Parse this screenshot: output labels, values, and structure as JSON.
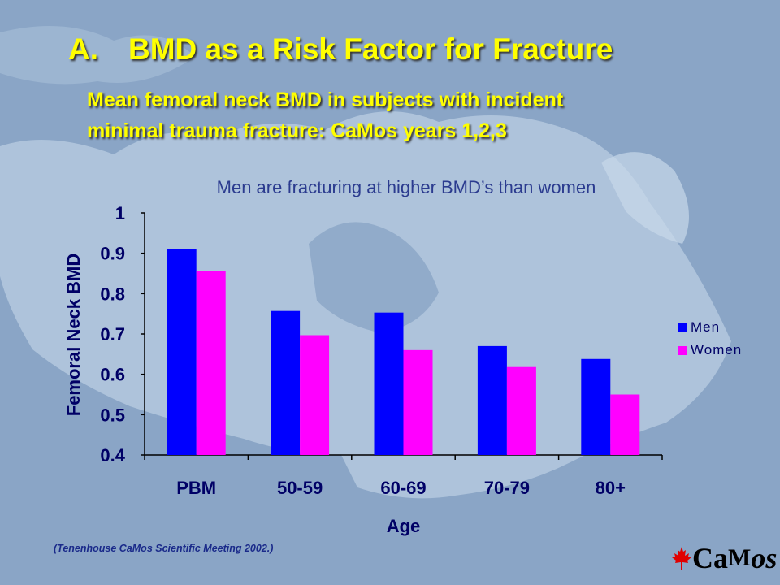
{
  "slide": {
    "title_number": "A.",
    "title_text": "BMD as a Risk Factor for Fracture",
    "subtitle_line1": "Mean femoral neck BMD in subjects with incident",
    "subtitle_line2": "minimal trauma fracture: CaMos years 1,2,3",
    "caption": "Men are fracturing at higher BMD’s than women",
    "reference": "(Tenenhouse CaMos Scientific Meeting 2002.)",
    "logo_ca": "Ca",
    "logo_m": "M",
    "logo_os": "os"
  },
  "chart_data": {
    "type": "bar",
    "categories": [
      "PBM",
      "50-59",
      "60-69",
      "70-79",
      "80+"
    ],
    "series": [
      {
        "name": "Men",
        "values": [
          0.91,
          0.757,
          0.753,
          0.67,
          0.638
        ],
        "color": "#0000ff"
      },
      {
        "name": "Women",
        "values": [
          0.857,
          0.697,
          0.66,
          0.618,
          0.55
        ],
        "color": "#ff00ff"
      }
    ],
    "xlabel": "Age",
    "ylabel": "Femoral Neck BMD",
    "ylim": [
      0.4,
      1
    ],
    "yticks": [
      "0.4",
      "0.5",
      "0.6",
      "0.7",
      "0.8",
      "0.9",
      "1"
    ],
    "legend_position": "right",
    "grid": false
  }
}
